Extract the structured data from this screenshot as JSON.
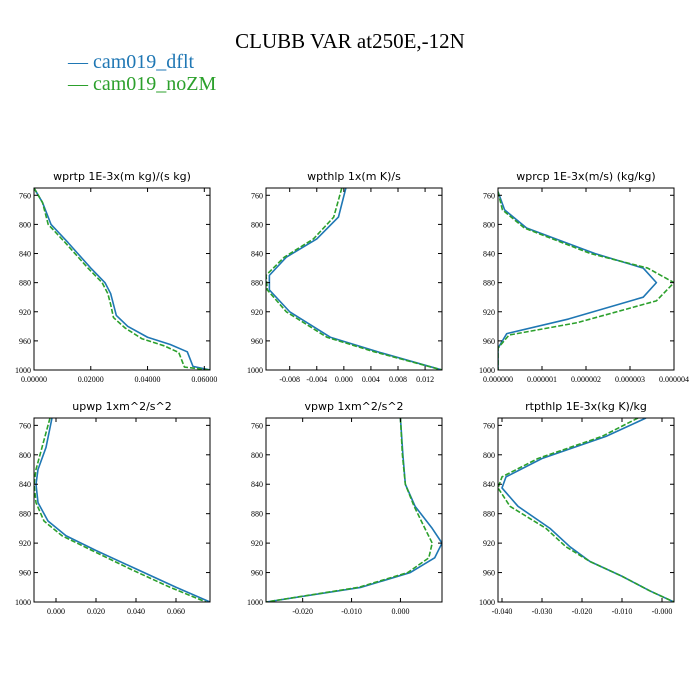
{
  "figure": {
    "title": "CLUBB VAR at250E,-12N",
    "legend": [
      {
        "label": "— cam019_dflt",
        "color": "#1f77b4"
      },
      {
        "label": "— cam019_noZM",
        "color": "#2ca02c"
      }
    ]
  },
  "chart_data": [
    {
      "type": "line",
      "title": "wprtp  1E-3x(m kg)/(s kg)",
      "xlim": [
        0.0,
        0.062
      ],
      "ylim": [
        750,
        1000
      ],
      "y_inverted": true,
      "xticks": [
        0.0,
        0.02,
        0.04,
        0.06
      ],
      "xtick_labels": [
        "0.00000",
        "0.02000",
        "0.04000",
        "0.06000"
      ],
      "yticks": [
        760,
        800,
        840,
        880,
        920,
        960,
        1000
      ],
      "ytick_labels": [
        "760",
        "800",
        "840",
        "880",
        "920",
        "960",
        "1000"
      ],
      "series": [
        {
          "color": "#1f77b4",
          "dashed": false,
          "x": [
            0.0,
            0.003,
            0.006,
            0.012,
            0.02,
            0.025,
            0.027,
            0.028,
            0.029,
            0.033,
            0.04,
            0.048,
            0.054,
            0.055,
            0.056,
            0.062
          ],
          "y": [
            750,
            770,
            800,
            825,
            860,
            880,
            895,
            910,
            925,
            940,
            955,
            965,
            975,
            985,
            995,
            1000
          ]
        },
        {
          "color": "#2ca02c",
          "dashed": true,
          "x": [
            0.0,
            0.003,
            0.005,
            0.011,
            0.019,
            0.024,
            0.026,
            0.027,
            0.028,
            0.032,
            0.038,
            0.046,
            0.051,
            0.052,
            0.053,
            0.062
          ],
          "y": [
            750,
            770,
            800,
            825,
            860,
            880,
            895,
            910,
            928,
            942,
            957,
            967,
            976,
            986,
            996,
            1000
          ]
        }
      ]
    },
    {
      "type": "line",
      "title": "wpthlp  1x(m K)/s",
      "xlim": [
        -0.0115,
        0.0145
      ],
      "ylim": [
        750,
        1000
      ],
      "y_inverted": true,
      "xticks": [
        -0.008,
        -0.004,
        0.0,
        0.004,
        0.008,
        0.012
      ],
      "xtick_labels": [
        "-0.008",
        "-0.004",
        "0.000",
        "0.004",
        "0.008",
        "0.012"
      ],
      "yticks": [
        760,
        800,
        840,
        880,
        920,
        960,
        1000
      ],
      "ytick_labels": [
        "760",
        "800",
        "840",
        "880",
        "920",
        "960",
        "1000"
      ],
      "series": [
        {
          "color": "#1f77b4",
          "dashed": false,
          "x": [
            0.0003,
            -0.0008,
            -0.004,
            -0.0085,
            -0.011,
            -0.011,
            -0.008,
            -0.002,
            0.005,
            0.0145
          ],
          "y": [
            750,
            790,
            820,
            845,
            870,
            890,
            920,
            955,
            975,
            1000
          ]
        },
        {
          "color": "#2ca02c",
          "dashed": true,
          "x": [
            -0.0003,
            -0.0015,
            -0.0045,
            -0.0088,
            -0.0115,
            -0.0113,
            -0.0085,
            -0.0025,
            0.0045,
            0.0145
          ],
          "y": [
            750,
            790,
            820,
            845,
            870,
            890,
            920,
            955,
            975,
            1000
          ]
        }
      ]
    },
    {
      "type": "line",
      "title": "wprcp  1E-3x(m/s) (kg/kg)",
      "xlim": [
        0.0,
        4e-06
      ],
      "ylim": [
        750,
        1000
      ],
      "y_inverted": true,
      "xticks": [
        0.0,
        1e-06,
        2e-06,
        3e-06,
        4e-06
      ],
      "xtick_labels": [
        "0.000000",
        "0.000001",
        "0.000002",
        "0.000003",
        "0.000004"
      ],
      "yticks": [
        760,
        800,
        840,
        880,
        920,
        960,
        1000
      ],
      "ytick_labels": [
        "760",
        "800",
        "840",
        "880",
        "920",
        "960",
        "1000"
      ],
      "series": [
        {
          "color": "#1f77b4",
          "dashed": false,
          "x": [
            0.0,
            1.5e-07,
            6.5e-07,
            2.2e-06,
            3.3e-06,
            3.6e-06,
            3.3e-06,
            1.6e-06,
            2e-07,
            0.0,
            0.0
          ],
          "y": [
            755,
            780,
            805,
            840,
            860,
            880,
            900,
            930,
            950,
            970,
            1000
          ]
        },
        {
          "color": "#2ca02c",
          "dashed": true,
          "x": [
            0.0,
            1e-07,
            6e-07,
            2.1e-06,
            3.4e-06,
            4e-06,
            3.6e-06,
            1.8e-06,
            2.5e-07,
            0.0,
            0.0
          ],
          "y": [
            755,
            780,
            805,
            840,
            860,
            880,
            905,
            935,
            952,
            970,
            1000
          ]
        }
      ]
    },
    {
      "type": "line",
      "title": "upwp  1xm^2/s^2",
      "xlim": [
        -0.011,
        0.077
      ],
      "ylim": [
        750,
        1000
      ],
      "y_inverted": true,
      "xticks": [
        0.0,
        0.02,
        0.04,
        0.06
      ],
      "xtick_labels": [
        "0.000",
        "0.020",
        "0.040",
        "0.060"
      ],
      "yticks": [
        760,
        800,
        840,
        880,
        920,
        960,
        1000
      ],
      "ytick_labels": [
        "760",
        "800",
        "840",
        "880",
        "920",
        "960",
        "1000"
      ],
      "series": [
        {
          "color": "#1f77b4",
          "dashed": false,
          "x": [
            -0.002,
            -0.005,
            -0.009,
            -0.01,
            -0.009,
            -0.004,
            0.005,
            0.02,
            0.04,
            0.06,
            0.077
          ],
          "y": [
            750,
            790,
            820,
            840,
            865,
            890,
            910,
            930,
            955,
            980,
            1000
          ]
        },
        {
          "color": "#2ca02c",
          "dashed": true,
          "x": [
            -0.003,
            -0.007,
            -0.01,
            -0.011,
            -0.01,
            -0.006,
            0.003,
            0.018,
            0.037,
            0.057,
            0.075
          ],
          "y": [
            750,
            790,
            820,
            840,
            865,
            890,
            910,
            930,
            955,
            980,
            1000
          ]
        }
      ]
    },
    {
      "type": "line",
      "title": "vpwp  1xm^2/s^2",
      "xlim": [
        -0.0275,
        0.0085
      ],
      "ylim": [
        750,
        1000
      ],
      "y_inverted": true,
      "xticks": [
        -0.02,
        -0.01,
        0.0
      ],
      "xtick_labels": [
        "-0.020",
        "-0.010",
        "0.000"
      ],
      "yticks": [
        760,
        800,
        840,
        880,
        920,
        960,
        1000
      ],
      "ytick_labels": [
        "760",
        "800",
        "840",
        "880",
        "920",
        "960",
        "1000"
      ],
      "series": [
        {
          "color": "#1f77b4",
          "dashed": false,
          "x": [
            0.0,
            0.0005,
            0.001,
            0.003,
            0.0065,
            0.0085,
            0.007,
            0.002,
            -0.008,
            -0.0275
          ],
          "y": [
            750,
            800,
            840,
            870,
            900,
            920,
            940,
            960,
            980,
            1000
          ]
        },
        {
          "color": "#2ca02c",
          "dashed": true,
          "x": [
            0.0,
            0.0004,
            0.001,
            0.0028,
            0.005,
            0.0065,
            0.0058,
            0.0015,
            -0.0085,
            -0.0275
          ],
          "y": [
            750,
            800,
            840,
            870,
            900,
            920,
            940,
            960,
            980,
            1000
          ]
        }
      ]
    },
    {
      "type": "line",
      "title": "rtpthlp  1E-3x(kg K)/kg",
      "xlim": [
        -0.041,
        0.003
      ],
      "ylim": [
        750,
        1000
      ],
      "y_inverted": true,
      "xticks": [
        -0.04,
        -0.03,
        -0.02,
        -0.01,
        0.0
      ],
      "xtick_labels": [
        "-0.040",
        "-0.030",
        "-0.020",
        "-0.010",
        "-0.000"
      ],
      "yticks": [
        760,
        800,
        840,
        880,
        920,
        960,
        1000
      ],
      "ytick_labels": [
        "760",
        "800",
        "840",
        "880",
        "920",
        "960",
        "1000"
      ],
      "series": [
        {
          "color": "#1f77b4",
          "dashed": false,
          "x": [
            -0.004,
            -0.014,
            -0.03,
            -0.039,
            -0.04,
            -0.036,
            -0.028,
            -0.023,
            -0.018,
            -0.01,
            -0.003,
            0.003
          ],
          "y": [
            750,
            775,
            805,
            830,
            845,
            870,
            900,
            925,
            945,
            965,
            985,
            1000
          ]
        },
        {
          "color": "#2ca02c",
          "dashed": true,
          "x": [
            -0.006,
            -0.015,
            -0.031,
            -0.04,
            -0.041,
            -0.038,
            -0.029,
            -0.024,
            -0.018,
            -0.01,
            -0.003,
            0.003
          ],
          "y": [
            750,
            775,
            805,
            830,
            845,
            870,
            900,
            925,
            945,
            965,
            985,
            1000
          ]
        }
      ]
    }
  ]
}
